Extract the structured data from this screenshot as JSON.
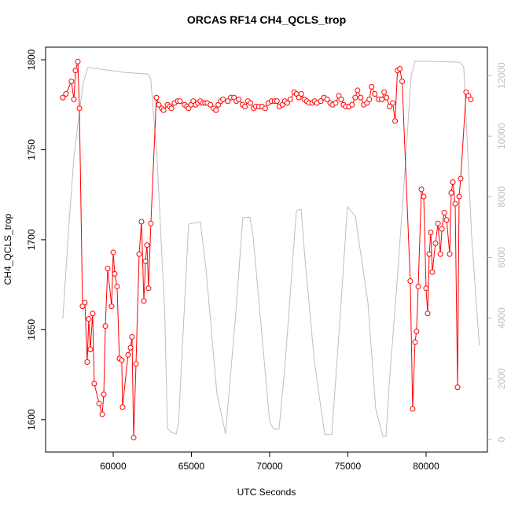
{
  "chart_data": {
    "type": "line-points",
    "title": "ORCAS RF14 CH4_QCLS_trop",
    "x_label": "UTC Seconds",
    "y_label": "CH4_QCLS_trop",
    "xlim": [
      55680,
      83920
    ],
    "xticks": [
      60000,
      65000,
      70000,
      75000,
      80000
    ],
    "ylim": [
      1582,
      1807
    ],
    "yticks": [
      1600,
      1650,
      1700,
      1750,
      1800
    ],
    "y2lim": [
      -415,
      12934
    ],
    "y2ticks": [
      0,
      2000,
      4000,
      6000,
      8000,
      10000,
      12000
    ],
    "y2color": "#bebebe",
    "series": [
      {
        "color": "#bebebe",
        "axis": "y2",
        "markers": false,
        "x": [
          56780,
          57190,
          57490,
          57790,
          58090,
          58390,
          59300,
          60800,
          62210,
          62400,
          62800,
          63300,
          63470,
          63720,
          64020,
          64170,
          64820,
          65570,
          65920,
          66630,
          67180,
          67830,
          68290,
          68740,
          68940,
          70000,
          70250,
          70600,
          70960,
          71710,
          72010,
          72260,
          72860,
          73520,
          73970,
          74520,
          74970,
          75480,
          76280,
          76780,
          77240,
          77440,
          77640,
          78140,
          78640,
          79040,
          79290,
          80150,
          82160,
          82410,
          82910,
          83400
        ],
        "values": [
          3990,
          7230,
          9300,
          10600,
          11770,
          12260,
          12200,
          12100,
          12050,
          11900,
          9300,
          4120,
          360,
          230,
          180,
          490,
          7100,
          7180,
          5680,
          1530,
          180,
          4120,
          7310,
          7330,
          6710,
          600,
          340,
          340,
          2300,
          7540,
          7590,
          5940,
          2570,
          160,
          160,
          4120,
          7670,
          7360,
          4510,
          1010,
          100,
          100,
          1790,
          5160,
          8790,
          11970,
          12470,
          12470,
          12440,
          12290,
          6710,
          3100
        ]
      },
      {
        "color": "#ff0000",
        "markers": true,
        "x": [
          56780,
          56980,
          57330,
          57490,
          57590,
          57740,
          57840,
          58040,
          58190,
          58340,
          58440,
          58540,
          58690,
          58790,
          59100,
          59300,
          59400,
          59500,
          59650,
          59900,
          60000,
          60100,
          60250,
          60400,
          60550,
          60600,
          60950,
          61110,
          61200,
          61310,
          61460,
          61660,
          61810,
          61960,
          62060,
          62160,
          62260,
          62410,
          62760,
          62910,
          63110,
          63220,
          63470,
          63620,
          63720,
          63920,
          64120,
          64270,
          64570,
          64720,
          64820,
          64970,
          65120,
          65270,
          65420,
          65570,
          65720,
          65870,
          66020,
          66220,
          66420,
          66570,
          66720,
          66870,
          67020,
          67320,
          67520,
          67720,
          67870,
          68020,
          68270,
          68420,
          68620,
          68770,
          68970,
          69120,
          69320,
          69520,
          69720,
          69920,
          70120,
          70320,
          70470,
          70620,
          70820,
          70970,
          71120,
          71320,
          71570,
          71720,
          71870,
          72020,
          72220,
          72370,
          72520,
          72720,
          72870,
          73020,
          73270,
          73470,
          73670,
          73870,
          74020,
          74220,
          74420,
          74570,
          74720,
          74870,
          75070,
          75270,
          75470,
          75620,
          75820,
          76020,
          76220,
          76370,
          76520,
          76720,
          76970,
          77170,
          77320,
          77470,
          77670,
          77870,
          78020,
          78170,
          78320,
          78470,
          78990,
          79140,
          79290,
          79390,
          79500,
          79700,
          79850,
          80000,
          80100,
          80200,
          80300,
          80400,
          80600,
          80760,
          80910,
          81010,
          81160,
          81310,
          81510,
          81610,
          81710,
          81860,
          82010,
          82110,
          82210,
          82560,
          82710,
          82860
        ],
        "values": [
          1779,
          1781,
          1788,
          1778,
          1794,
          1799,
          1773,
          1663,
          1665,
          1632,
          1656,
          1639,
          1659,
          1620,
          1609,
          1603,
          1614,
          1652,
          1684,
          1663,
          1693,
          1681,
          1674,
          1634,
          1633,
          1607,
          1636,
          1640,
          1646,
          1590,
          1631,
          1692,
          1710,
          1666,
          1688,
          1697,
          1673,
          1709,
          1779,
          1775,
          1773,
          1772,
          1775,
          1774,
          1773,
          1776,
          1777,
          1777,
          1775,
          1774,
          1773,
          1775,
          1777,
          1775,
          1776,
          1777,
          1776,
          1776,
          1776,
          1775,
          1773,
          1772,
          1775,
          1777,
          1778,
          1777,
          1779,
          1779,
          1777,
          1778,
          1775,
          1774,
          1777,
          1776,
          1773,
          1774,
          1774,
          1774,
          1773,
          1776,
          1777,
          1777,
          1777,
          1774,
          1775,
          1777,
          1776,
          1778,
          1782,
          1781,
          1779,
          1781,
          1778,
          1777,
          1776,
          1776,
          1777,
          1776,
          1777,
          1779,
          1778,
          1776,
          1775,
          1776,
          1780,
          1778,
          1775,
          1774,
          1774,
          1775,
          1779,
          1783,
          1779,
          1775,
          1776,
          1778,
          1785,
          1781,
          1778,
          1778,
          1782,
          1779,
          1774,
          1776,
          1766,
          1794,
          1795,
          1788,
          1677,
          1606,
          1643,
          1649,
          1674,
          1728,
          1724,
          1673,
          1659,
          1692,
          1704,
          1682,
          1698,
          1709,
          1692,
          1706,
          1715,
          1711,
          1692,
          1726,
          1732,
          1720,
          1618,
          1724,
          1734,
          1782,
          1780,
          1778
        ]
      }
    ]
  }
}
